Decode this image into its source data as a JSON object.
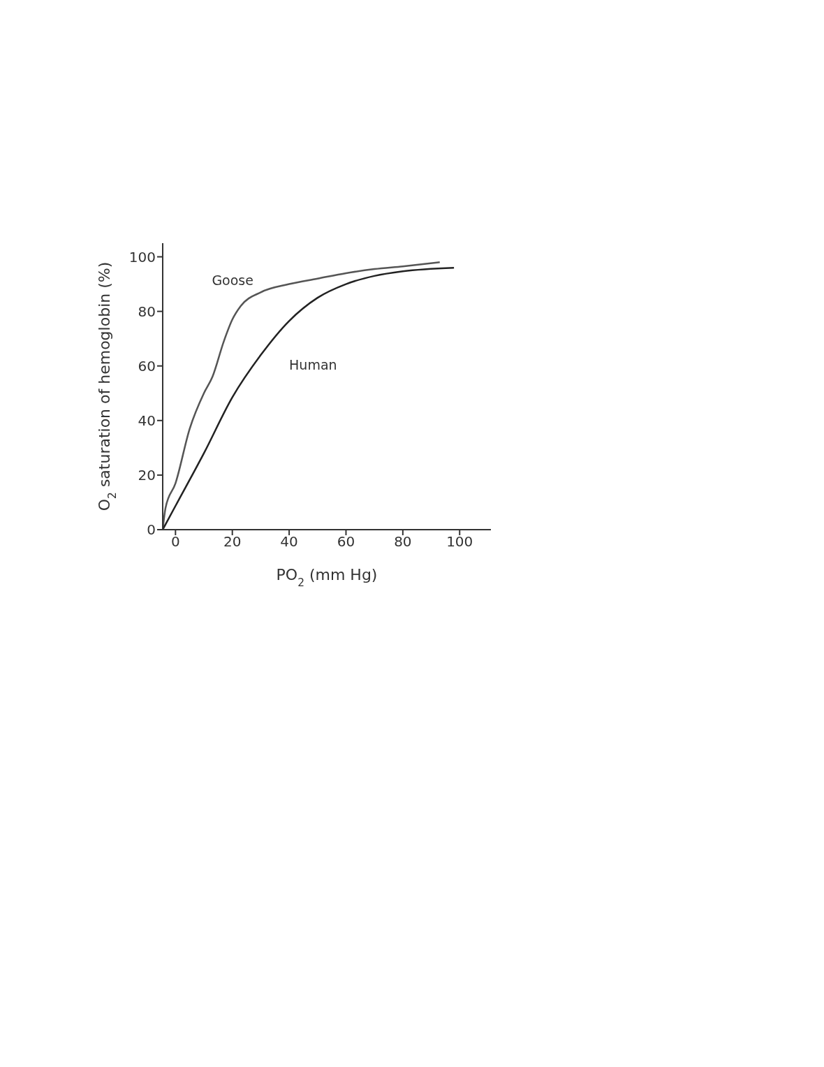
{
  "chart_data": {
    "type": "line",
    "xlabel": "PO$_{2}$ (mm Hg)",
    "ylabel": "O$_{2}$ saturation of hemoglobin (%)",
    "xlim": [
      -4.5,
      111
    ],
    "ylim": [
      0,
      105
    ],
    "xticks": [
      0,
      20,
      40,
      60,
      80,
      100
    ],
    "yticks": [
      0,
      20,
      40,
      60,
      80,
      100
    ],
    "grid": false,
    "legend": false,
    "marker": "none",
    "line_style": "solid",
    "series": [
      {
        "name": "Goose",
        "color": "#555555",
        "x": [
          -4.5,
          -3.5,
          0,
          5,
          10,
          13,
          17,
          20,
          23,
          30,
          40,
          50,
          60,
          70,
          80,
          93
        ],
        "values": [
          0,
          8,
          17,
          37,
          50,
          56,
          69,
          77,
          82,
          87,
          90,
          92,
          94,
          95.5,
          96.5,
          98
        ]
      },
      {
        "name": "Human",
        "color": "#222222",
        "x": [
          -4.5,
          0,
          10,
          20,
          30,
          40,
          50,
          60,
          70,
          80,
          98
        ],
        "values": [
          0,
          8.7,
          28,
          48.5,
          64,
          76.5,
          85,
          90,
          93,
          94.7,
          96
        ]
      }
    ]
  }
}
